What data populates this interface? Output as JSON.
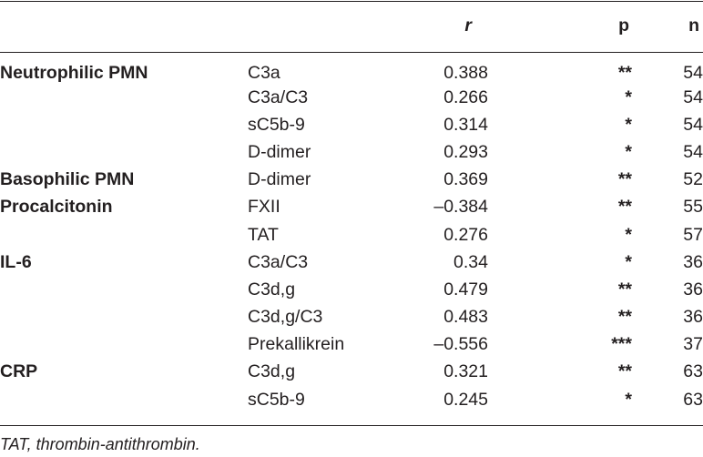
{
  "table": {
    "headers": {
      "group": "",
      "parameter": "",
      "r": "r",
      "p": "p",
      "n": "n"
    },
    "rows": [
      {
        "group": "Neutrophilic PMN",
        "parameter": "C3a",
        "r": "0.388",
        "p": "**",
        "n": "54"
      },
      {
        "group": "",
        "parameter": "C3a/C3",
        "r": "0.266",
        "p": "*",
        "n": "54"
      },
      {
        "group": "",
        "parameter": "sC5b-9",
        "r": "0.314",
        "p": "*",
        "n": "54"
      },
      {
        "group": "",
        "parameter": "D-dimer",
        "r": "0.293",
        "p": "*",
        "n": "54"
      },
      {
        "group": "Basophilic PMN",
        "parameter": "D-dimer",
        "r": "0.369",
        "p": "**",
        "n": "52"
      },
      {
        "group": "Procalcitonin",
        "parameter": "FXII",
        "r": "–0.384",
        "p": "**",
        "n": "55"
      },
      {
        "group": "",
        "parameter": "TAT",
        "r": "0.276",
        "p": "*",
        "n": "57"
      },
      {
        "group": "IL-6",
        "parameter": "C3a/C3",
        "r": "0.34",
        "p": "*",
        "n": "36"
      },
      {
        "group": "",
        "parameter": "C3d,g",
        "r": "0.479",
        "p": "**",
        "n": "36"
      },
      {
        "group": "",
        "parameter": "C3d,g/C3",
        "r": "0.483",
        "p": "**",
        "n": "36"
      },
      {
        "group": "",
        "parameter": "Prekallikrein",
        "r": "–0.556",
        "p": "***",
        "n": "37"
      },
      {
        "group": "CRP",
        "parameter": "C3d,g",
        "r": "0.321",
        "p": "**",
        "n": "63"
      },
      {
        "group": "",
        "parameter": "sC5b-9",
        "r": "0.245",
        "p": "*",
        "n": "63"
      }
    ]
  },
  "footnote": "TAT, thrombin-antithrombin."
}
